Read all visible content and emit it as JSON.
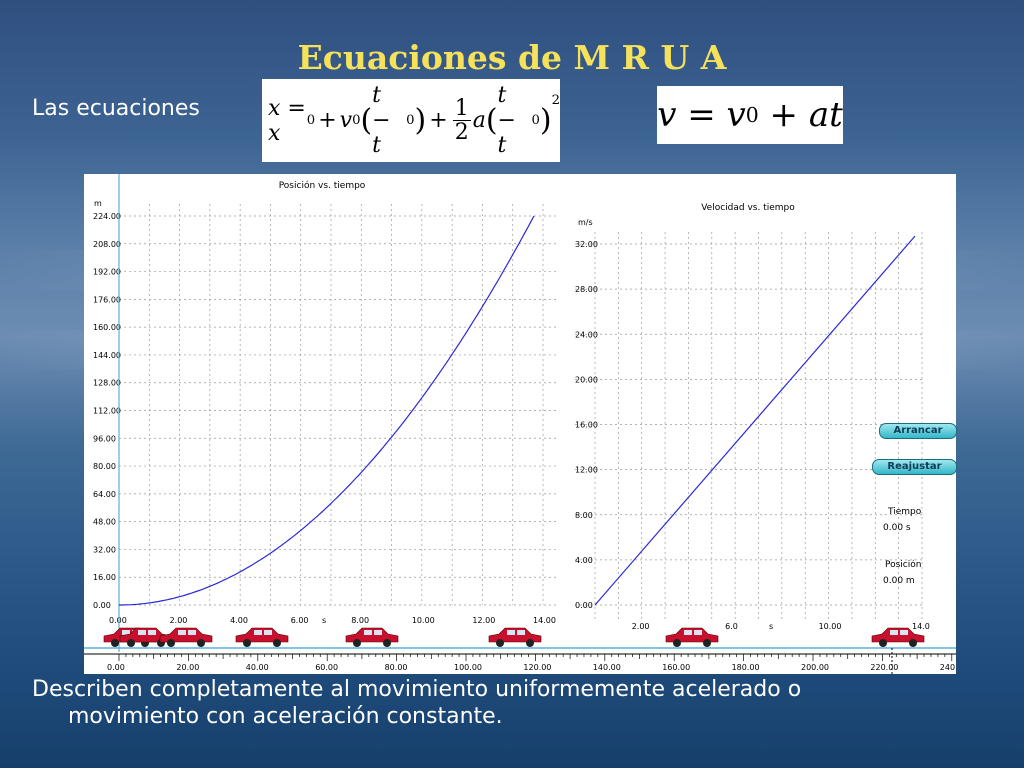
{
  "slide": {
    "title": "Ecuaciones de M R U A",
    "intro": "Las ecuaciones",
    "footer_line1": "Describen completamente al movimiento uniformemente acelerado o",
    "footer_line2": "movimiento con aceleración constante."
  },
  "equations": {
    "position_lhs": "x = x",
    "sub0": "0",
    "v": "v",
    "plus": "+",
    "t_minus": "t − t",
    "one": "1",
    "two": "2",
    "a": "a",
    "sq": "2",
    "velocity_left": "v = v",
    "velocity_right": " + at"
  },
  "sim": {
    "position_chart": {
      "title": "Posición vs. tiempo",
      "unit": "m",
      "y_ticks": [
        "224.00",
        "208.00",
        "192.00",
        "176.00",
        "160.00",
        "144.00",
        "128.00",
        "112.00",
        "96.00",
        "80.00",
        "64.00",
        "48.00",
        "32.00",
        "16.00",
        "0.00"
      ],
      "x_ticks": [
        "0.00",
        "2.00",
        "4.00",
        "6.00",
        "8.00",
        "10.00",
        "12.00",
        "14.00"
      ],
      "x_unit": "s"
    },
    "velocity_chart": {
      "title": "Velocidad vs. tiempo",
      "unit": "m/s",
      "y_ticks": [
        "32.00",
        "28.00",
        "24.00",
        "20.00",
        "16.00",
        "12.00",
        "8.00",
        "4.00",
        "0.00"
      ],
      "x_ticks": [
        "2.00",
        "6.0",
        "10.00",
        "14.0"
      ],
      "x_unit": "s"
    },
    "ruler_ticks": [
      "0.00",
      "20.00",
      "40.00",
      "60.00",
      "80.00",
      "100.00",
      "120.00",
      "140.00",
      "160.00",
      "180.00",
      "200.00",
      "220.00",
      "240"
    ],
    "buttons": {
      "start": "Arrancar",
      "reset": "Reajustar"
    },
    "readouts": {
      "time_label": "Tiempo",
      "time_value": "0.00 s",
      "position_label": "Posición",
      "position_value": "0.00 m"
    },
    "colors": {
      "curve": "#2a2ad8",
      "car": "#c8102e",
      "grid": "#888888"
    }
  },
  "chart_data": [
    {
      "type": "line",
      "title": "Posición vs. tiempo",
      "xlabel": "s",
      "ylabel": "m",
      "xlim": [
        0,
        14
      ],
      "ylim": [
        0,
        224
      ],
      "series": [
        {
          "x": [
            0,
            2,
            4,
            6,
            8,
            10,
            12,
            13.7
          ],
          "values": [
            0,
            4.6,
            18.3,
            41.1,
            73.1,
            114.2,
            164.4,
            224
          ]
        }
      ]
    },
    {
      "type": "line",
      "title": "Velocidad vs. tiempo",
      "xlabel": "s",
      "ylabel": "m/s",
      "xlim": [
        0,
        14
      ],
      "ylim": [
        0,
        32
      ],
      "series": [
        {
          "x": [
            0,
            13.7
          ],
          "values": [
            0,
            32.7
          ]
        }
      ]
    }
  ]
}
